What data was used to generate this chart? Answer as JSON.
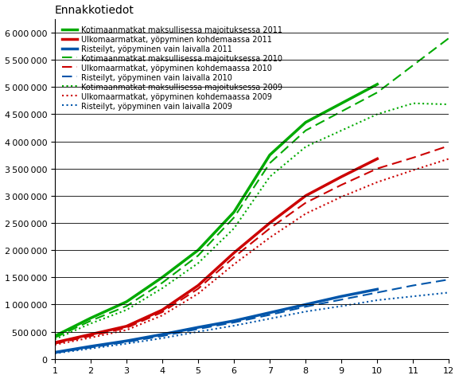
{
  "title": "Ennakkotiedot",
  "xlim": [
    1,
    12
  ],
  "ylim": [
    0,
    6250000
  ],
  "yticks": [
    0,
    500000,
    1000000,
    1500000,
    2000000,
    2500000,
    3000000,
    3500000,
    4000000,
    4500000,
    5000000,
    5500000,
    6000000
  ],
  "xticks": [
    1,
    2,
    3,
    4,
    5,
    6,
    7,
    8,
    9,
    10,
    11,
    12
  ],
  "series": [
    {
      "label": "Kotimaanmatkat maksullisessa majoituksessa 2011",
      "color": "#00aa00",
      "linestyle": "solid",
      "linewidth": 2.5,
      "data_x": [
        1,
        2,
        3,
        4,
        5,
        6,
        7,
        8,
        9,
        10
      ],
      "data_y": [
        420000,
        750000,
        1050000,
        1500000,
        2000000,
        2700000,
        3750000,
        4350000,
        4700000,
        5050000
      ]
    },
    {
      "label": "Ulkomaarmatkat, yöpyminen kohdemaassa 2011",
      "color": "#cc0000",
      "linestyle": "solid",
      "linewidth": 2.5,
      "data_x": [
        1,
        2,
        3,
        4,
        5,
        6,
        7,
        8,
        9,
        10
      ],
      "data_y": [
        300000,
        450000,
        600000,
        900000,
        1350000,
        1950000,
        2500000,
        3000000,
        3350000,
        3680000
      ]
    },
    {
      "label": "Risteilyt, yöpyminen vain laivalla 2011",
      "color": "#0055aa",
      "linestyle": "solid",
      "linewidth": 2.5,
      "data_x": [
        1,
        2,
        3,
        4,
        5,
        6,
        7,
        8,
        9,
        10
      ],
      "data_y": [
        120000,
        230000,
        330000,
        450000,
        580000,
        700000,
        850000,
        1000000,
        1150000,
        1280000
      ]
    },
    {
      "label": "Kotimaanmatkat maksullisessa majoituksessa 2010",
      "color": "#00aa00",
      "linestyle": "dashed",
      "linewidth": 1.5,
      "data_x": [
        1,
        2,
        3,
        4,
        5,
        6,
        7,
        8,
        9,
        10,
        11,
        12
      ],
      "data_y": [
        390000,
        700000,
        970000,
        1400000,
        1900000,
        2600000,
        3600000,
        4200000,
        4550000,
        4900000,
        5400000,
        5900000
      ]
    },
    {
      "label": "Ulkomaarmatkat, yöpyminen kohdemaassa 2010",
      "color": "#cc0000",
      "linestyle": "dashed",
      "linewidth": 1.5,
      "data_x": [
        1,
        2,
        3,
        4,
        5,
        6,
        7,
        8,
        9,
        10,
        11,
        12
      ],
      "data_y": [
        280000,
        420000,
        570000,
        860000,
        1290000,
        1870000,
        2400000,
        2870000,
        3200000,
        3500000,
        3700000,
        3920000
      ]
    },
    {
      "label": "Risteilyt, yöpyminen vain laivalla 2010",
      "color": "#0055aa",
      "linestyle": "dashed",
      "linewidth": 1.5,
      "data_x": [
        1,
        2,
        3,
        4,
        5,
        6,
        7,
        8,
        9,
        10,
        11,
        12
      ],
      "data_y": [
        110000,
        210000,
        310000,
        420000,
        550000,
        670000,
        810000,
        960000,
        1090000,
        1220000,
        1350000,
        1460000
      ]
    },
    {
      "label": "Kotimaanmatkat maksullisessa majoituksessa 2009",
      "color": "#00aa00",
      "linestyle": "dotted",
      "linewidth": 1.5,
      "data_x": [
        1,
        2,
        3,
        4,
        5,
        6,
        7,
        8,
        9,
        10,
        11,
        12
      ],
      "data_y": [
        360000,
        650000,
        900000,
        1300000,
        1760000,
        2400000,
        3350000,
        3900000,
        4200000,
        4500000,
        4700000,
        4680000
      ]
    },
    {
      "label": "Ulkomaarmatkat, yöpyminen kohdemaassa 2009",
      "color": "#cc0000",
      "linestyle": "dotted",
      "linewidth": 1.5,
      "data_x": [
        1,
        2,
        3,
        4,
        5,
        6,
        7,
        8,
        9,
        10,
        11,
        12
      ],
      "data_y": [
        260000,
        390000,
        530000,
        800000,
        1200000,
        1740000,
        2230000,
        2670000,
        2980000,
        3250000,
        3470000,
        3680000
      ]
    },
    {
      "label": "Risteilyt, yöpyminen vain laivalla 2009",
      "color": "#0055aa",
      "linestyle": "dotted",
      "linewidth": 1.5,
      "data_x": [
        1,
        2,
        3,
        4,
        5,
        6,
        7,
        8,
        9,
        10,
        11,
        12
      ],
      "data_y": [
        100000,
        190000,
        280000,
        380000,
        500000,
        610000,
        740000,
        870000,
        970000,
        1080000,
        1150000,
        1220000
      ]
    }
  ],
  "legend_fontsize": 7,
  "title_fontsize": 10,
  "tick_fontsize": 8,
  "background_color": "#ffffff",
  "grid_color": "#000000",
  "border_color": "#000000"
}
